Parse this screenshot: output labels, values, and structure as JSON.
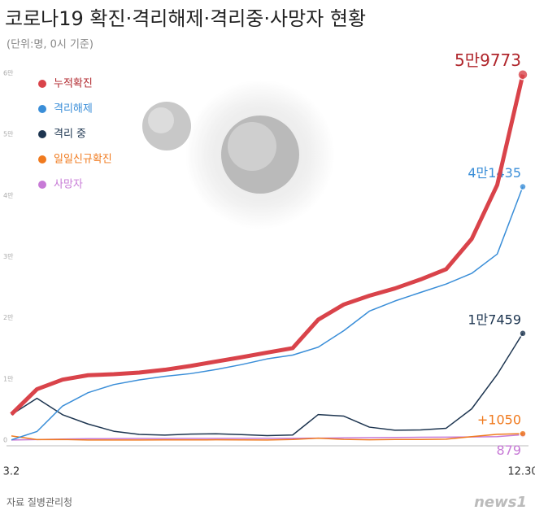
{
  "chart_data": {
    "type": "line",
    "title": "코로나19 확진·격리해제·격리중·사망자 현황",
    "subtitle": "(단위:명, 0시 기준)",
    "source": "자료 질병관리청",
    "logo": "news1",
    "categories": [
      "3.2",
      null,
      null,
      null,
      null,
      null,
      null,
      null,
      null,
      null,
      null,
      null,
      null,
      null,
      null,
      null,
      null,
      null,
      null,
      null,
      "12.30"
    ],
    "ylim": [
      0,
      60000
    ],
    "yticks": [
      0,
      {
        "value": 10000,
        "label": "1만"
      },
      {
        "value": 20000,
        "label": "2만"
      },
      {
        "value": 30000,
        "label": "3만"
      },
      {
        "value": 40000,
        "label": "4만"
      },
      {
        "value": 50000,
        "label": "5만"
      },
      {
        "value": 60000,
        "label": "6만"
      }
    ],
    "grid": false,
    "series": [
      {
        "name": "누적확진",
        "color": "#d9434a",
        "values": [
          4212,
          8320,
          9887,
          10613,
          10774,
          11037,
          11503,
          12121,
          12850,
          13551,
          14305,
          15039,
          19699,
          22176,
          23611,
          24805,
          26271,
          27942,
          32887,
          41736,
          59773
        ],
        "value_labels": [
          null,
          null,
          null,
          null,
          null,
          null,
          null,
          null,
          null,
          null,
          null,
          null,
          null,
          null,
          null,
          null,
          null,
          null,
          null,
          null,
          "5만9773"
        ]
      },
      {
        "name": "격리해제",
        "color": "#3a8ed8",
        "values": [
          31,
          1401,
          5567,
          7757,
          9072,
          9851,
          10422,
          10868,
          11537,
          12348,
          13280,
          13901,
          15198,
          17896,
          21090,
          22747,
          24146,
          25519,
          27260,
          30422,
          41435
        ],
        "value_labels": [
          null,
          null,
          null,
          null,
          null,
          null,
          null,
          null,
          null,
          null,
          null,
          null,
          null,
          null,
          null,
          null,
          null,
          null,
          null,
          null,
          "4만1435"
        ]
      },
      {
        "name": "격리 중",
        "color": "#1d3550",
        "values": [
          4159,
          6838,
          4155,
          2627,
          1454,
          924,
          808,
          976,
          1031,
          906,
          724,
          833,
          4178,
          3920,
          2120,
          1614,
          1665,
          1936,
          5106,
          10745,
          17459
        ],
        "value_labels": [
          null,
          null,
          null,
          null,
          null,
          null,
          null,
          null,
          null,
          null,
          null,
          null,
          null,
          null,
          null,
          null,
          null,
          null,
          null,
          null,
          "1만7459"
        ]
      },
      {
        "name": "일일신규확진",
        "color": "#f07a1e",
        "values": [
          686,
          84,
          101,
          22,
          9,
          19,
          27,
          37,
          42,
          39,
          18,
          103,
          308,
          121,
          50,
          102,
          103,
          143,
          569,
          950,
          1050
        ],
        "value_labels": [
          null,
          null,
          null,
          null,
          null,
          null,
          null,
          null,
          null,
          null,
          null,
          null,
          null,
          null,
          null,
          null,
          null,
          null,
          null,
          null,
          "+1050"
        ]
      },
      {
        "name": "사망자",
        "color": "#c77ad6",
        "values": [
          22,
          81,
          165,
          229,
          248,
          262,
          273,
          277,
          282,
          297,
          301,
          305,
          323,
          360,
          401,
          434,
          460,
          487,
          521,
          569,
          879
        ]
      }
    ]
  }
}
